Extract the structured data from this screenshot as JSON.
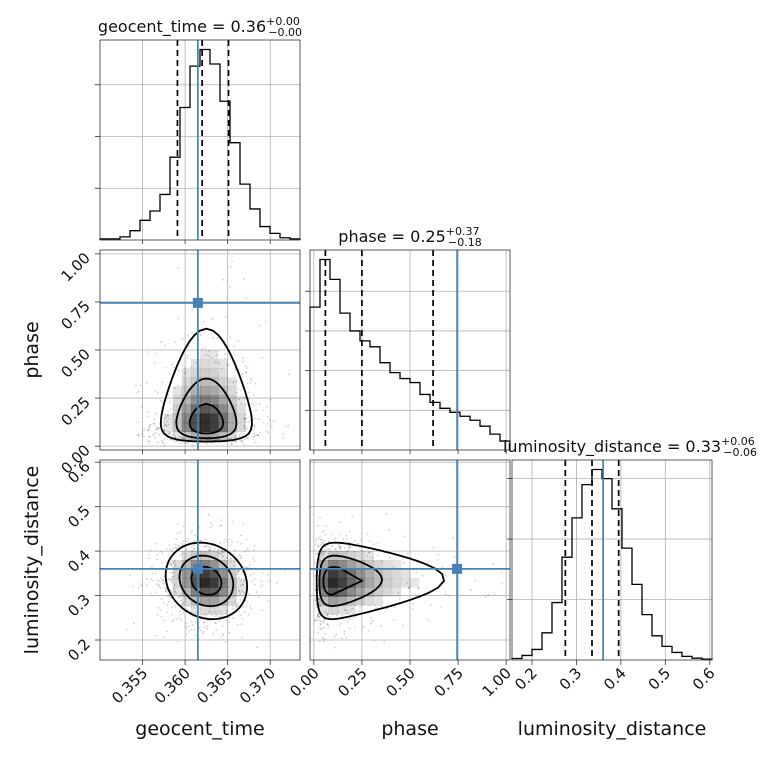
{
  "chart_data": {
    "type": "corner",
    "params": [
      {
        "name": "geocent_time",
        "xlabel": "geocent_time",
        "ylabel": "",
        "range": [
          0.35,
          0.3735
        ],
        "ticks": [
          0.355,
          0.36,
          0.365,
          0.37
        ],
        "tick_labels": [
          "0.355",
          "0.360",
          "0.365",
          "0.370"
        ],
        "truth": 0.3615,
        "quantiles": [
          0.3591,
          0.362,
          0.3651
        ],
        "title": {
          "text": "geocent_time = 0.36",
          "sup": "+0.00",
          "sub": "−0.00"
        },
        "hist_density": [
          0.5,
          0.5,
          1.5,
          4.5,
          9.5,
          14,
          22,
          40,
          64,
          84,
          92,
          85,
          67,
          47,
          27,
          15,
          6.5,
          3.2,
          1.1,
          0.5
        ],
        "hist_yticks": [
          25,
          50,
          75
        ]
      },
      {
        "name": "phase",
        "xlabel": "phase",
        "ylabel": "phase",
        "range": [
          -0.02,
          1.02
        ],
        "ticks": [
          0.0,
          0.25,
          0.5,
          0.75,
          1.0
        ],
        "tick_labels": [
          "0.00",
          "0.25",
          "0.50",
          "0.75",
          "1.00"
        ],
        "truth": 0.745,
        "quantiles": [
          0.06,
          0.25,
          0.62
        ],
        "title": {
          "text": "phase = 0.25",
          "sup": "+0.37",
          "sub": "−0.18"
        },
        "hist_density": [
          72,
          96,
          86,
          69,
          60,
          55,
          52,
          44,
          39,
          36,
          34,
          28,
          24,
          21,
          19,
          17,
          15,
          12,
          8,
          4.5
        ],
        "hist_yticks": [
          20,
          40,
          60,
          80
        ]
      },
      {
        "name": "luminosity_distance",
        "xlabel": "luminosity_distance",
        "ylabel": "luminosity_distance",
        "range": [
          0.155,
          0.605
        ],
        "ticks": [
          0.2,
          0.3,
          0.4,
          0.5,
          0.6
        ],
        "tick_labels": [
          "0.2",
          "0.3",
          "0.4",
          "0.5",
          "0.6"
        ],
        "truth": 0.36,
        "quantiles": [
          0.275,
          0.335,
          0.395
        ],
        "title": {
          "text": "luminosity_distance = 0.33",
          "sup": "+0.06",
          "sub": "−0.06"
        },
        "hist_density": [
          0.5,
          1.5,
          3.5,
          9,
          19,
          34,
          47,
          58,
          63,
          60,
          50,
          37,
          25,
          15,
          8,
          4.5,
          2.5,
          1.2,
          0.6,
          0.3
        ],
        "hist_yticks": [
          20,
          40,
          60
        ]
      }
    ],
    "ytick_overrides": {
      "phase": [
        "0.00",
        "0.25",
        "0.50",
        "0.75",
        "1.00"
      ],
      "luminosity_distance": [
        "0.2",
        "0.3",
        "0.4",
        "0.5",
        "0.6"
      ]
    },
    "pair_stats": {
      "geocent_time|phase": {
        "mx": 0.3625,
        "sx": 0.0028,
        "my": 0.22,
        "sy": 0.26,
        "rho": 0.0,
        "skew_y": true
      },
      "geocent_time|luminosity_distance": {
        "mx": 0.3625,
        "sx": 0.0025,
        "my": 0.333,
        "sy": 0.045,
        "rho": -0.15
      },
      "phase|luminosity_distance": {
        "mx": 0.25,
        "sx": 0.28,
        "my": 0.333,
        "sy": 0.045,
        "rho": 0.05,
        "skew_x": true
      }
    },
    "colors": {
      "truth": "#4682b4",
      "hist": "#000000",
      "density": "#000000"
    },
    "grid": true
  }
}
